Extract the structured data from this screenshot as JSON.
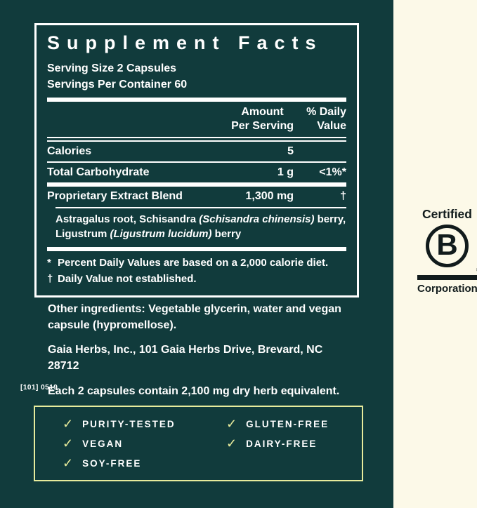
{
  "colors": {
    "teal": "#113b3c",
    "cream": "#fcf9e8",
    "accent": "#e7eb9c",
    "ink": "#111b1c",
    "white": "#ffffff"
  },
  "label": {
    "title": "Supplement Facts",
    "serving_size": "Serving Size 2 Capsules",
    "servings_per_container": "Servings Per Container 60",
    "header": {
      "amount_line1": "Amount",
      "amount_line2": "Per Serving",
      "daily_line1": "% Daily",
      "daily_line2": "Value"
    },
    "rows": [
      {
        "name": "Calories",
        "amount": "5",
        "daily": ""
      },
      {
        "name": "Total Carbohydrate",
        "amount": "1 g",
        "daily": "<1%*"
      },
      {
        "name": "Proprietary Extract Blend",
        "amount": "1,300 mg",
        "daily": "†"
      }
    ],
    "blend": {
      "line1_regular": "Astragalus root, Schisandra ",
      "line1_italic": "(Schisandra chinensis)",
      "line1_tail": " berry,",
      "line2_regular": "Ligustrum ",
      "line2_italic": "(Ligustrum lucidum)",
      "line2_tail": " berry"
    },
    "footnotes": [
      {
        "marker": "*",
        "text": "Percent Daily Values are based on a 2,000 calorie diet."
      },
      {
        "marker": "†",
        "text": "Daily Value not established."
      }
    ],
    "other_ingredients": "Other ingredients: Vegetable glycerin, water and vegan capsule (hypromellose).",
    "manufacturer": "Gaia Herbs, Inc., 101 Gaia Herbs Drive, Brevard, NC 28712",
    "equivalent_note": "Each 2 capsules contain 2,100 mg dry herb equivalent.",
    "lot_code": "[101] 0519"
  },
  "badges": {
    "check_icon": "✓",
    "left": [
      "PURITY-TESTED",
      "VEGAN",
      "SOY-FREE"
    ],
    "right": [
      "GLUTEN-FREE",
      "DAIRY-FREE"
    ]
  },
  "bcorp": {
    "certified": "Certified",
    "letter": "B",
    "registered": "®",
    "corporation": "Corporation"
  }
}
